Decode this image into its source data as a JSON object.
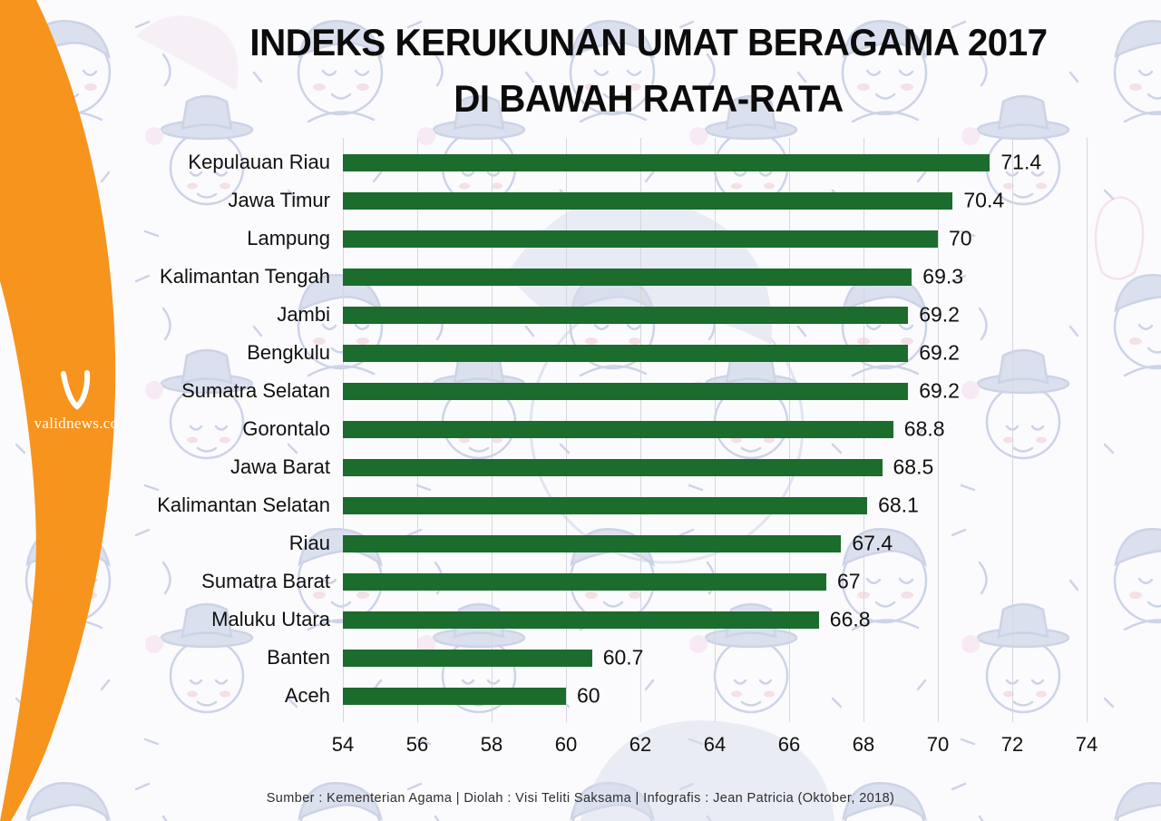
{
  "page": {
    "title_line1": "INDEKS KERUKUNAN UMAT BERAGAMA 2017",
    "title_line2": "DI BAWAH RATA-RATA",
    "source_caption": "Sumber : Kementerian Agama | Diolah : Visi Teliti Saksama | Infografis : Jean Patricia (Oktober, 2018)"
  },
  "branding": {
    "logo_text": "validnews.co",
    "logo_icon": "v-swoosh-icon",
    "accent_color": "#F7941E"
  },
  "chart_data": {
    "type": "bar",
    "orientation": "horizontal",
    "title": "INDEKS KERUKUNAN UMAT BERAGAMA 2017 DI BAWAH RATA-RATA",
    "categories": [
      "Kepulauan Riau",
      "Jawa Timur",
      "Lampung",
      "Kalimantan Tengah",
      "Jambi",
      "Bengkulu",
      "Sumatra Selatan",
      "Gorontalo",
      "Jawa Barat",
      "Kalimantan Selatan",
      "Riau",
      "Sumatra Barat",
      "Maluku Utara",
      "Banten",
      "Aceh"
    ],
    "values": [
      71.4,
      70.4,
      70,
      69.3,
      69.2,
      69.2,
      69.2,
      68.8,
      68.5,
      68.1,
      67.4,
      67,
      66.8,
      60.7,
      60
    ],
    "value_labels": [
      "71.4",
      "70.4",
      "70",
      "69.3",
      "69.2",
      "69.2",
      "69.2",
      "68.8",
      "68.5",
      "68.1",
      "67.4",
      "67",
      "66.8",
      "60.7",
      "60"
    ],
    "xlim": [
      54,
      74
    ],
    "x_ticks": [
      54,
      56,
      58,
      60,
      62,
      64,
      66,
      68,
      70,
      72,
      74
    ],
    "bar_color": "#1B6C2D",
    "grid": true,
    "legend": false
  }
}
